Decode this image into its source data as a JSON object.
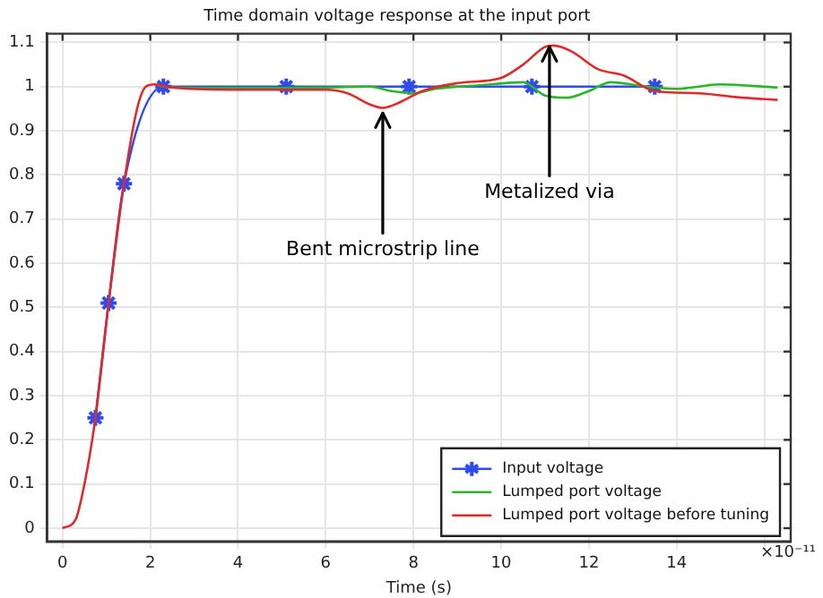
{
  "chart_data": {
    "type": "line",
    "title": "Time domain voltage response at the input port",
    "xlabel": "Time (s)",
    "xlim": [
      -0.35,
      16.6
    ],
    "xticks": [
      0,
      2,
      4,
      6,
      8,
      10,
      12,
      14,
      {
        "value": 16,
        "label": null
      }
    ],
    "ylim": [
      -0.03,
      1.12
    ],
    "yticks": [
      0,
      0.1,
      0.2,
      0.3,
      0.4,
      0.5,
      0.6,
      0.7,
      0.8,
      0.9,
      1,
      {
        "value": 1.1,
        "label": "1.1"
      }
    ],
    "grid": true,
    "legend": "bottom right",
    "line_style": "solid",
    "annotations": [
      {
        "text": "Bent microstrip line",
        "x": 7.3,
        "y": 0.94
      },
      {
        "text": "Metalized via",
        "x": 11.1,
        "y": 1.09
      },
      "×10⁻¹¹"
    ],
    "series": [
      {
        "name": "Input voltage",
        "color": "#2f4bf0",
        "marker": "cross",
        "x": [
          0.75,
          1.05,
          1.4,
          2.3,
          5.1,
          7.9,
          10.7,
          13.5
        ],
        "values": [
          0.25,
          0.51,
          0.78,
          1,
          1,
          1,
          1,
          1
        ]
      },
      {
        "name": "Lumped port voltage",
        "color": "#2ab52a",
        "marker": "none",
        "x": [
          2.1,
          2.5,
          4,
          6,
          7,
          7.5,
          8,
          8.5,
          9.5,
          10.5,
          11,
          11.5,
          12,
          12.5,
          13.3,
          14,
          15,
          16.3
        ],
        "values": [
          1.005,
          0.998,
          0.997,
          0.998,
          1,
          0.99,
          0.985,
          0.995,
          1.003,
          1.01,
          0.98,
          0.975,
          0.99,
          1.01,
          1,
          0.995,
          1.005,
          0.998
        ]
      },
      {
        "name": "Lumped port voltage before tuning",
        "color": "#e02a2a",
        "marker": "none",
        "x": [
          0,
          0.3,
          0.5,
          0.75,
          1.05,
          1.4,
          1.7,
          1.9,
          2.1,
          2.5,
          4,
          6,
          6.5,
          7,
          7.3,
          7.7,
          8.2,
          9,
          10,
          10.5,
          11,
          11.2,
          11.6,
          12.2,
          12.8,
          13.5,
          14.5,
          15.5,
          16.3
        ],
        "values": [
          0,
          0.02,
          0.1,
          0.25,
          0.51,
          0.78,
          0.95,
          1,
          1.005,
          0.998,
          0.993,
          0.993,
          0.985,
          0.96,
          0.952,
          0.965,
          0.99,
          1.008,
          1.02,
          1.05,
          1.09,
          1.093,
          1.08,
          1.04,
          1.025,
          0.99,
          0.985,
          0.975,
          0.97
        ]
      }
    ]
  }
}
